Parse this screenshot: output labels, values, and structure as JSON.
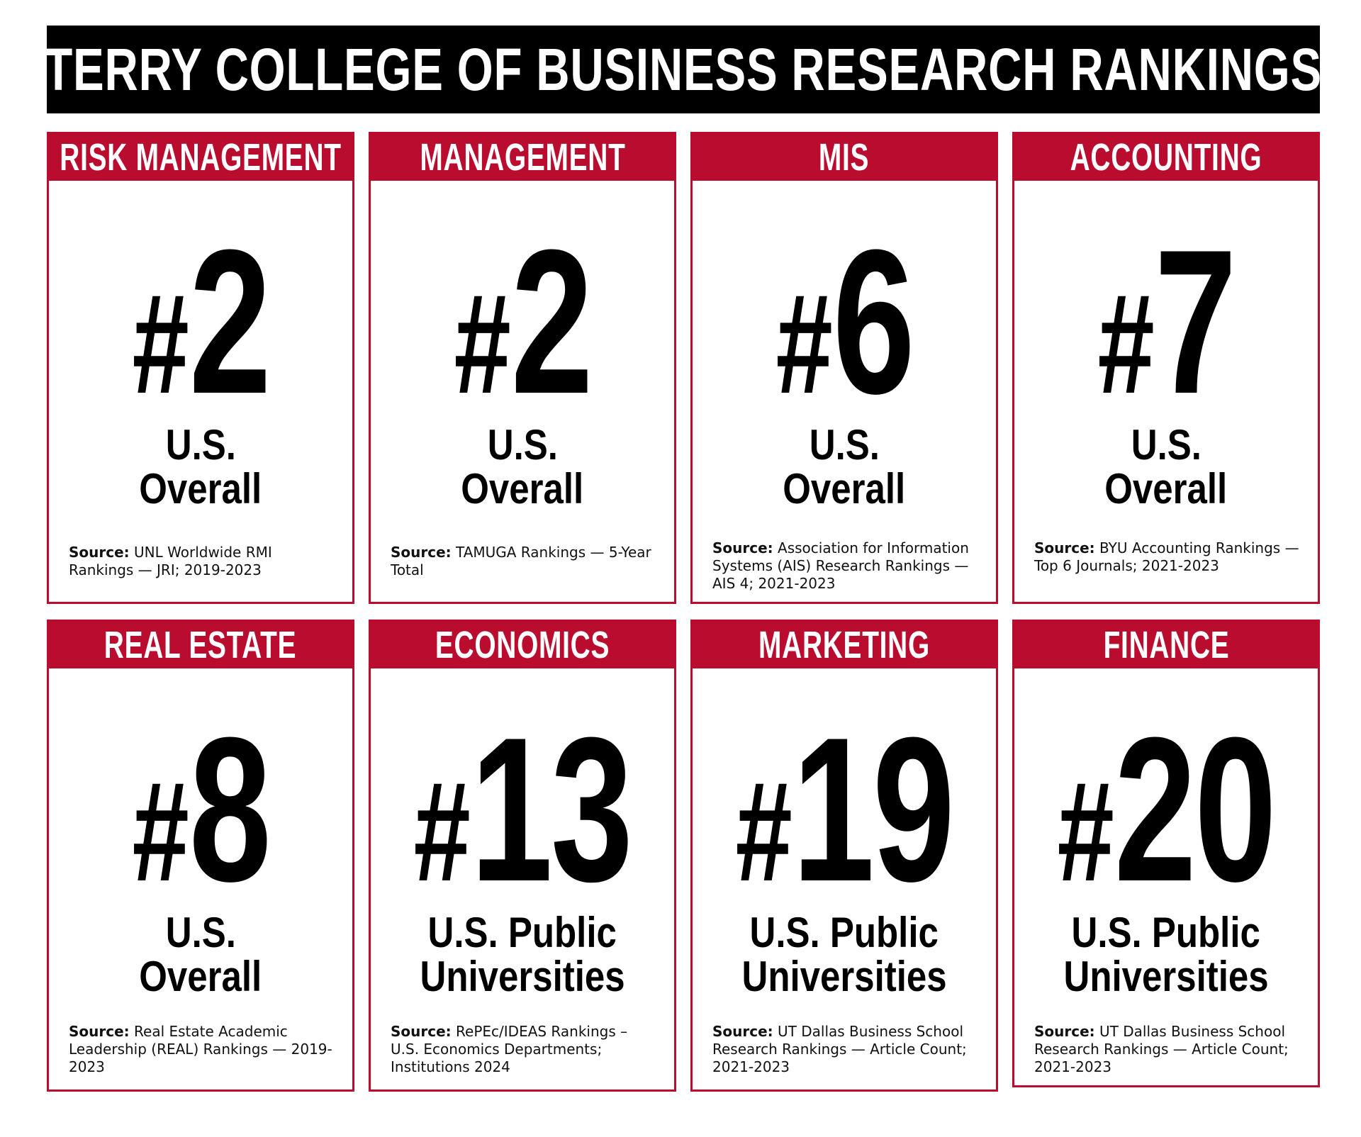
{
  "title": "TERRY COLLEGE OF BUSINESS RESEARCH RANKINGS",
  "source_label": "Source:",
  "colors": {
    "accent": "#ba0c2f",
    "title_bg": "#000000"
  },
  "cards": [
    {
      "category": "RISK MANAGEMENT",
      "hash": "#",
      "rank": "2",
      "scope_line1": "U.S.",
      "scope_line2": "Overall",
      "source": "UNL Worldwide RMI Rankings — JRI; 2019-2023"
    },
    {
      "category": "MANAGEMENT",
      "hash": "#",
      "rank": "2",
      "scope_line1": "U.S.",
      "scope_line2": "Overall",
      "source": "TAMUGA Rankings — 5-Year Total"
    },
    {
      "category": "MIS",
      "hash": "#",
      "rank": "6",
      "scope_line1": "U.S.",
      "scope_line2": "Overall",
      "source": "Association for Information Systems (AIS) Research Rankings — AIS 4; 2021-2023"
    },
    {
      "category": "ACCOUNTING",
      "hash": "#",
      "rank": "7",
      "scope_line1": "U.S.",
      "scope_line2": "Overall",
      "source": "BYU Accounting Rankings — Top 6 Journals; 2021-2023"
    },
    {
      "category": "REAL ESTATE",
      "hash": "#",
      "rank": "8",
      "scope_line1": "U.S.",
      "scope_line2": "Overall",
      "source": "Real Estate Academic Leadership (REAL) Rankings — 2019-2023"
    },
    {
      "category": "ECONOMICS",
      "hash": "#",
      "rank": "13",
      "scope_line1": "U.S. Public",
      "scope_line2": "Universities",
      "source": "RePEc/IDEAS Rankings – U.S. Economics Departments; Institutions 2024"
    },
    {
      "category": "MARKETING",
      "hash": "#",
      "rank": "19",
      "scope_line1": "U.S. Public",
      "scope_line2": "Universities",
      "source": "UT Dallas Business School Research Rankings — Article Count; 2021-2023"
    },
    {
      "category": "FINANCE",
      "hash": "#",
      "rank": "20",
      "scope_line1": "U.S. Public",
      "scope_line2": "Universities",
      "source": "UT Dallas Business School Research Rankings — Article Count; 2021-2023"
    }
  ]
}
